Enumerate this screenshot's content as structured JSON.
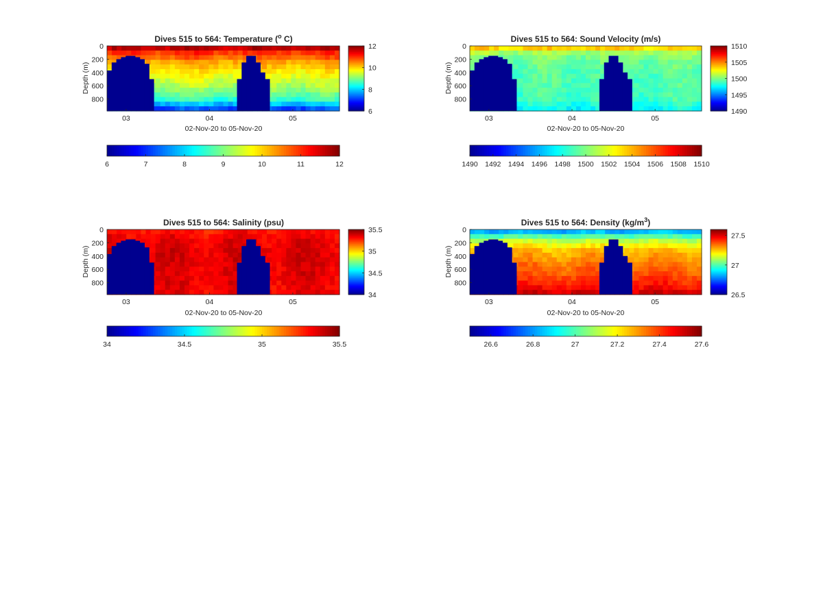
{
  "colors": {
    "jet": [
      "#00008f",
      "#0000ff",
      "#0080ff",
      "#00ffff",
      "#80ff80",
      "#ffff00",
      "#ff8000",
      "#ff0000",
      "#800000"
    ],
    "gap": "#00008f",
    "axis": "#262626"
  },
  "chart_data": [
    {
      "type": "heatmap",
      "title": "Dives 515 to 564: Temperature (° C)",
      "title_parts": [
        "Dives 515 to 564: Temperature (",
        "o",
        " C)"
      ],
      "xlabel": "02-Nov-20 to 05-Nov-20",
      "ylabel": "Depth (m)",
      "x_ticks": [
        "03",
        "04",
        "05"
      ],
      "x_tick_values": [
        3.0,
        4.0,
        5.0
      ],
      "xlim": [
        2.77,
        5.56
      ],
      "ylim": [
        0,
        980
      ],
      "y_ticks": [
        "0",
        "200",
        "400",
        "600",
        "800"
      ],
      "y_tick_values": [
        0,
        200,
        400,
        600,
        800
      ],
      "colorbar_range": [
        6,
        12
      ],
      "colorbar_ticks": [
        "12",
        "10",
        "8",
        "6"
      ],
      "colorbar_tick_values": [
        12,
        10,
        8,
        6
      ],
      "horizontal_colorbar_ticks": [
        "6",
        "7",
        "8",
        "9",
        "10",
        "11",
        "12"
      ],
      "horizontal_colorbar_tick_values": [
        6,
        7,
        8,
        9,
        10,
        11,
        12
      ],
      "profile": {
        "depths": [
          0,
          50,
          100,
          150,
          250,
          400,
          600,
          800,
          950,
          980
        ],
        "values": [
          11.9,
          11.5,
          11.0,
          10.8,
          10.3,
          9.8,
          9.3,
          8.6,
          7.2,
          6.8
        ]
      }
    },
    {
      "type": "heatmap",
      "title": "Dives 515 to 564: Sound Velocity (m/s)",
      "title_parts": [
        "Dives 515 to 564: Sound Velocity (m/s)",
        "",
        ""
      ],
      "xlabel": "02-Nov-20 to 05-Nov-20",
      "ylabel": "Depth (m)",
      "x_ticks": [
        "03",
        "04",
        "05"
      ],
      "x_tick_values": [
        3.0,
        4.0,
        5.0
      ],
      "xlim": [
        2.77,
        5.56
      ],
      "ylim": [
        0,
        980
      ],
      "y_ticks": [
        "0",
        "200",
        "400",
        "600",
        "800"
      ],
      "y_tick_values": [
        0,
        200,
        400,
        600,
        800
      ],
      "colorbar_range": [
        1490,
        1510
      ],
      "colorbar_ticks": [
        "1510",
        "1505",
        "1500",
        "1495",
        "1490"
      ],
      "colorbar_tick_values": [
        1510,
        1505,
        1500,
        1495,
        1490
      ],
      "horizontal_colorbar_ticks": [
        "1490",
        "1492",
        "1494",
        "1496",
        "1498",
        "1500",
        "1502",
        "1504",
        "1506",
        "1508",
        "1510"
      ],
      "horizontal_colorbar_tick_values": [
        1490,
        1492,
        1494,
        1496,
        1498,
        1500,
        1502,
        1504,
        1506,
        1508,
        1510
      ],
      "profile": {
        "depths": [
          0,
          40,
          100,
          200,
          400,
          600,
          800,
          950,
          980
        ],
        "values": [
          1505.5,
          1503,
          1500.8,
          1499.8,
          1499.2,
          1499.0,
          1498.8,
          1497.6,
          1497.0
        ]
      }
    },
    {
      "type": "heatmap",
      "title": "Dives 515 to 564: Salinity (psu)",
      "title_parts": [
        "Dives 515 to 564: Salinity (psu)",
        "",
        ""
      ],
      "xlabel": "02-Nov-20 to 05-Nov-20",
      "ylabel": "Depth (m)",
      "x_ticks": [
        "03",
        "04",
        "05"
      ],
      "x_tick_values": [
        3.0,
        4.0,
        5.0
      ],
      "xlim": [
        2.77,
        5.56
      ],
      "ylim": [
        0,
        980
      ],
      "y_ticks": [
        "0",
        "200",
        "400",
        "600",
        "800"
      ],
      "y_tick_values": [
        0,
        200,
        400,
        600,
        800
      ],
      "colorbar_range": [
        34,
        35.5
      ],
      "colorbar_ticks": [
        "35.5",
        "35",
        "34.5",
        "34"
      ],
      "colorbar_tick_values": [
        35.5,
        35,
        34.5,
        34
      ],
      "horizontal_colorbar_ticks": [
        "34",
        "34.5",
        "35",
        "35.5"
      ],
      "horizontal_colorbar_tick_values": [
        34,
        34.5,
        35,
        35.5
      ],
      "profile": {
        "depths": [
          0,
          100,
          200,
          400,
          600,
          800,
          980
        ],
        "values": [
          35.28,
          35.32,
          35.35,
          35.36,
          35.35,
          35.34,
          35.33
        ]
      }
    },
    {
      "type": "heatmap",
      "title": "Dives 515 to 564: Density (kg/m³)",
      "title_parts": [
        "Dives 515 to 564: Density (kg/m",
        "3",
        ")"
      ],
      "xlabel": "02-Nov-20 to 05-Nov-20",
      "ylabel": "Depth (m)",
      "x_ticks": [
        "03",
        "04",
        "05"
      ],
      "x_tick_values": [
        3.0,
        4.0,
        5.0
      ],
      "xlim": [
        2.77,
        5.56
      ],
      "ylim": [
        0,
        980
      ],
      "y_ticks": [
        "0",
        "200",
        "400",
        "600",
        "800"
      ],
      "y_tick_values": [
        0,
        200,
        400,
        600,
        800
      ],
      "colorbar_range": [
        26.5,
        27.6
      ],
      "colorbar_ticks": [
        "27.5",
        "27",
        "26.5"
      ],
      "colorbar_tick_values": [
        27.5,
        27,
        26.5
      ],
      "horizontal_colorbar_ticks": [
        "26.6",
        "26.8",
        "27",
        "27.2",
        "27.4",
        "27.6"
      ],
      "horizontal_colorbar_tick_values": [
        26.6,
        26.8,
        27,
        27.2,
        27.4,
        27.6
      ],
      "profile": {
        "depths": [
          0,
          60,
          150,
          300,
          500,
          700,
          850,
          980
        ],
        "values": [
          26.75,
          26.9,
          27.1,
          27.25,
          27.33,
          27.38,
          27.45,
          27.52
        ]
      }
    }
  ]
}
